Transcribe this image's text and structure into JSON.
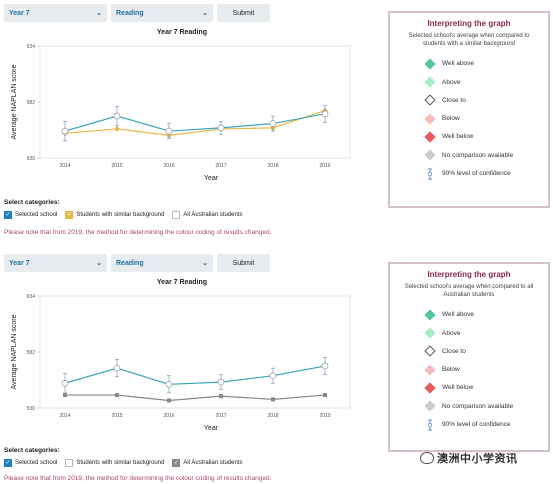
{
  "charts": [
    {
      "controls": {
        "year": "Year 7",
        "domain": "Reading",
        "submit": "Submit"
      },
      "title": "Year 7 Reading",
      "ylabel": "Average NAPLAN score",
      "xlabel": "Year",
      "categories_title": "Select categories:",
      "categories": [
        {
          "label": "Selected school",
          "checked": true,
          "color": "#1f7fb6"
        },
        {
          "label": "Students with similar background",
          "checked": true,
          "color": "#e6b84a"
        },
        {
          "label": "All Australian students",
          "checked": false,
          "color": "#888888"
        }
      ],
      "note": "Please note that from 2019, the method for determining the colour coding of results changed.",
      "legend": {
        "title": "Interpreting the graph",
        "subtitle": "Selected school's average when compared to students with a similar background"
      }
    },
    {
      "controls": {
        "year": "Year 7",
        "domain": "Reading",
        "submit": "Submit"
      },
      "title": "Year 7 Reading",
      "ylabel": "Average NAPLAN score",
      "xlabel": "Year",
      "categories_title": "Select categories:",
      "categories": [
        {
          "label": "Selected school",
          "checked": true,
          "color": "#1f7fb6"
        },
        {
          "label": "Students with similar background",
          "checked": false,
          "color": "#e6b84a"
        },
        {
          "label": "All Australian students",
          "checked": true,
          "color": "#888888"
        }
      ],
      "note": "Please note that from 2019, the method for determining the colour coding of results changed.",
      "legend": {
        "title": "Interpreting the graph",
        "subtitle": "Selected school's average when compared to all Australian students"
      }
    }
  ],
  "legend_items": [
    {
      "label": "Well above",
      "icon": "diamond-filled",
      "color": "#4fc79a"
    },
    {
      "label": "Above",
      "icon": "diamond-filled",
      "color": "#a8ecc9"
    },
    {
      "label": "Close to",
      "icon": "diamond-outline",
      "color": "#555555"
    },
    {
      "label": "Below",
      "icon": "diamond-filled",
      "color": "#f5bcbc"
    },
    {
      "label": "Well below",
      "icon": "diamond-filled",
      "color": "#e65a5a"
    },
    {
      "label": "No comparison available",
      "icon": "diamond-filled",
      "color": "#cccccc"
    },
    {
      "label": "90% level of confidence",
      "icon": "error-bar",
      "color": "#6a8fc0"
    }
  ],
  "watermark": "澳洲中小学资讯",
  "chart_data": [
    {
      "type": "line",
      "title": "Year 7 Reading",
      "xlabel": "Year",
      "ylabel": "Average NAPLAN score",
      "x": [
        "2014",
        "2015",
        "2016",
        "2017",
        "2018",
        "2019"
      ],
      "ylim": [
        530,
        634
      ],
      "yticks": [
        530,
        582,
        634
      ],
      "series": [
        {
          "name": "Selected school",
          "color": "#3aa6b8",
          "values": [
            555,
            569,
            555,
            558,
            562,
            571
          ],
          "err": [
            9,
            9,
            7,
            6,
            7,
            8
          ]
        },
        {
          "name": "Students with similar background",
          "color": "#e6b84a",
          "values": [
            553,
            557,
            551,
            557,
            558,
            574
          ],
          "err": [
            0,
            0,
            0,
            0,
            0,
            0
          ]
        }
      ]
    },
    {
      "type": "line",
      "title": "Year 7 Reading",
      "xlabel": "Year",
      "ylabel": "Average NAPLAN score",
      "x": [
        "2014",
        "2015",
        "2016",
        "2017",
        "2018",
        "2019"
      ],
      "ylim": [
        530,
        634
      ],
      "yticks": [
        530,
        582,
        634
      ],
      "series": [
        {
          "name": "Selected school",
          "color": "#3aa6b8",
          "values": [
            553,
            567,
            552,
            554,
            560,
            569
          ],
          "err": [
            9,
            8,
            8,
            7,
            7,
            8
          ]
        },
        {
          "name": "All Australian students",
          "color": "#888888",
          "values": [
            542,
            542,
            537,
            541,
            538,
            542
          ],
          "err": [
            0,
            0,
            0,
            0,
            0,
            0
          ]
        }
      ]
    }
  ]
}
